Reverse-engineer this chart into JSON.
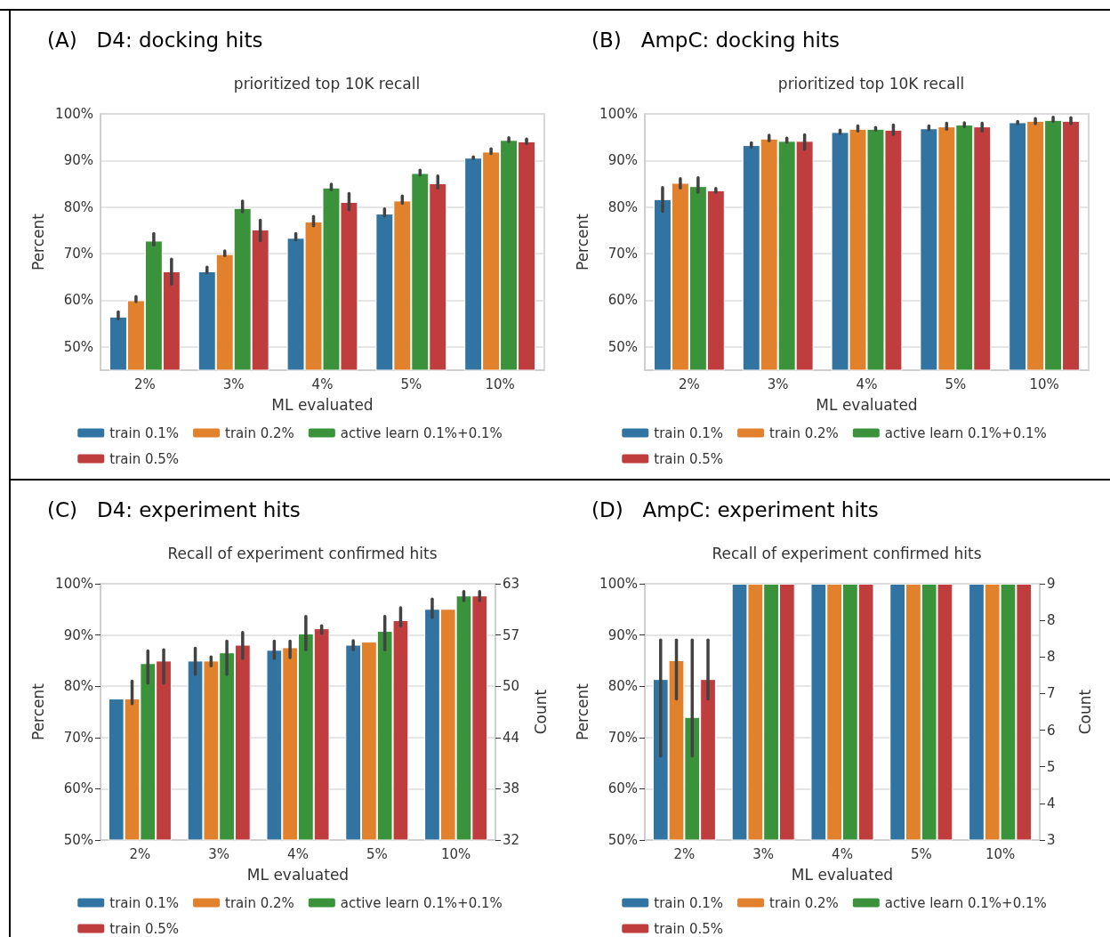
{
  "chart_data": [
    {
      "type": "bar",
      "title": "(A)   D4: docking hits",
      "subtitle": "prioritized top 10K recall",
      "xlabel": "ML evaluated",
      "ylabel": "Percent",
      "categories": [
        "2%",
        "3%",
        "4%",
        "5%",
        "10%"
      ],
      "series": [
        {
          "name": "train 0.1%",
          "color": "#3274a1",
          "values": [
            56.5,
            66.2,
            73.4,
            78.6,
            90.6
          ],
          "errors": [
            [
              56,
              57.5
            ],
            [
              65.9,
              67.1
            ],
            [
              73,
              74.3
            ],
            [
              78.1,
              79.6
            ],
            [
              90.4,
              90.8
            ]
          ]
        },
        {
          "name": "train 0.2%",
          "color": "#e1812c",
          "values": [
            60,
            69.9,
            76.9,
            81.4,
            91.9
          ],
          "errors": [
            [
              59.7,
              60.8
            ],
            [
              69.6,
              70.6
            ],
            [
              76,
              78
            ],
            [
              80.8,
              82.4
            ],
            [
              91.5,
              92.5
            ]
          ]
        },
        {
          "name": "active learn 0.1%+0.1%",
          "color": "#3a923a",
          "values": [
            72.8,
            79.8,
            84.2,
            87.3,
            94.4
          ],
          "errors": [
            [
              71.9,
              74.3
            ],
            [
              79,
              81.3
            ],
            [
              83.7,
              84.9
            ],
            [
              86.9,
              87.9
            ],
            [
              94.1,
              94.9
            ]
          ]
        },
        {
          "name": "train 0.5%",
          "color": "#c03d3e",
          "values": [
            66.2,
            75.2,
            81.1,
            85.1,
            94.1
          ],
          "errors": [
            [
              63.5,
              68.8
            ],
            [
              72.8,
              77.2
            ],
            [
              79.4,
              82.9
            ],
            [
              84.1,
              86.7
            ],
            [
              93.6,
              94.6
            ]
          ]
        }
      ],
      "ylim": [
        45,
        100
      ],
      "yticks": [
        {
          "value": 50,
          "label": "50%"
        },
        {
          "value": 60,
          "label": "60%"
        },
        {
          "value": 70,
          "label": "70%"
        },
        {
          "value": 80,
          "label": "80%"
        },
        {
          "value": 90,
          "label": "90%"
        },
        {
          "value": 100,
          "label": "100%"
        }
      ],
      "grid": "y",
      "legend": "bottom"
    },
    {
      "type": "bar",
      "title": "(B)   AmpC: docking hits",
      "subtitle": "prioritized top 10K recall",
      "xlabel": "ML evaluated",
      "ylabel": "Percent",
      "categories": [
        "2%",
        "3%",
        "4%",
        "5%",
        "10%"
      ],
      "series": [
        {
          "name": "train 0.1%",
          "color": "#3274a1",
          "values": [
            81.7,
            93.3,
            96.1,
            96.9,
            98.2
          ],
          "errors": [
            [
              79.1,
              84.2
            ],
            [
              92.9,
              93.8
            ],
            [
              95.8,
              96.5
            ],
            [
              96.6,
              97.4
            ],
            [
              97.9,
              98.4
            ]
          ]
        },
        {
          "name": "train 0.2%",
          "color": "#e1812c",
          "values": [
            85.2,
            94.7,
            96.8,
            97.3,
            98.5
          ],
          "errors": [
            [
              84.1,
              86.1
            ],
            [
              94.2,
              95.4
            ],
            [
              96.3,
              97.4
            ],
            [
              96.7,
              98
            ],
            [
              97.9,
              99
            ]
          ]
        },
        {
          "name": "active learn 0.1%+0.1%",
          "color": "#3a923a",
          "values": [
            84.5,
            94.2,
            96.8,
            97.7,
            98.7
          ],
          "errors": [
            [
              83.2,
              86.3
            ],
            [
              93.9,
              94.8
            ],
            [
              96.5,
              97.1
            ],
            [
              97.3,
              98.1
            ],
            [
              98.4,
              99.3
            ]
          ]
        },
        {
          "name": "train 0.5%",
          "color": "#c03d3e",
          "values": [
            83.6,
            94.2,
            96.6,
            97.3,
            98.5
          ],
          "errors": [
            [
              83.2,
              84
            ],
            [
              92.4,
              95.5
            ],
            [
              95.6,
              97.6
            ],
            [
              96.3,
              98
            ],
            [
              97.9,
              99.2
            ]
          ]
        }
      ],
      "ylim": [
        45,
        100
      ],
      "yticks": [
        {
          "value": 50,
          "label": "50%"
        },
        {
          "value": 60,
          "label": "60%"
        },
        {
          "value": 70,
          "label": "70%"
        },
        {
          "value": 80,
          "label": "80%"
        },
        {
          "value": 90,
          "label": "90%"
        },
        {
          "value": 100,
          "label": "100%"
        }
      ],
      "grid": "y",
      "legend": "bottom"
    },
    {
      "type": "bar",
      "title": "(C)   D4: experiment hits",
      "subtitle": "Recall of experiment confirmed hits",
      "xlabel": "ML evaluated",
      "ylabel": "Percent",
      "y2label": "Count",
      "categories": [
        "2%",
        "3%",
        "4%",
        "5%",
        "10%"
      ],
      "series": [
        {
          "name": "train 0.1%",
          "color": "#3274a1",
          "values": [
            77.6,
            85,
            87.1,
            88.1,
            95.1
          ],
          "errors": [
            null,
            [
              82.3,
              87.4
            ],
            [
              85.4,
              88.8
            ],
            [
              87.1,
              88.9
            ],
            [
              93.4,
              97
            ]
          ]
        },
        {
          "name": "train 0.2%",
          "color": "#e1812c",
          "values": [
            77.6,
            85,
            87.6,
            88.7,
            95.1
          ],
          "errors": [
            [
              76.6,
              81
            ],
            [
              84,
              85.7
            ],
            [
              85.6,
              88.8
            ],
            null,
            null
          ]
        },
        {
          "name": "active learn 0.1%+0.1%",
          "color": "#3a923a",
          "values": [
            84.5,
            86.6,
            90.3,
            90.8,
            97.7
          ],
          "errors": [
            [
              80.6,
              86.9
            ],
            [
              82.3,
              88.8
            ],
            [
              87.1,
              93.6
            ],
            [
              87.1,
              93.6
            ],
            [
              96.7,
              98.5
            ]
          ]
        },
        {
          "name": "train 0.5%",
          "color": "#c03d3e",
          "values": [
            85,
            88.1,
            91.3,
            92.9,
            97.7
          ],
          "errors": [
            [
              80.6,
              87.1
            ],
            [
              85.4,
              90.5
            ],
            [
              90.3,
              91.8
            ],
            [
              91.8,
              95.3
            ],
            [
              96.7,
              98.5
            ]
          ]
        }
      ],
      "ylim": [
        50,
        100
      ],
      "yticks": [
        {
          "value": 50,
          "label": "50%"
        },
        {
          "value": 60,
          "label": "60%"
        },
        {
          "value": 70,
          "label": "70%"
        },
        {
          "value": 80,
          "label": "80%"
        },
        {
          "value": 90,
          "label": "90%"
        },
        {
          "value": 100,
          "label": "100%"
        }
      ],
      "y2lim": [
        31.5,
        63
      ],
      "y2ticks": [
        {
          "value": 31.5,
          "label": "32"
        },
        {
          "value": 37.8,
          "label": "38"
        },
        {
          "value": 44.1,
          "label": "44"
        },
        {
          "value": 50.4,
          "label": "50"
        },
        {
          "value": 56.7,
          "label": "57"
        },
        63
      ],
      "grid": "y",
      "legend": "bottom"
    },
    {
      "type": "bar",
      "title": "(D)   AmpC: experiment hits",
      "subtitle": "Recall of experiment confirmed hits",
      "xlabel": "ML evaluated",
      "ylabel": "Percent",
      "y2label": "Count",
      "categories": [
        "2%",
        "3%",
        "4%",
        "5%",
        "10%"
      ],
      "series": [
        {
          "name": "train 0.1%",
          "color": "#3274a1",
          "values": [
            81.4,
            100,
            100,
            100,
            100
          ],
          "errors": [
            [
              66.4,
              89
            ],
            null,
            null,
            null,
            null
          ]
        },
        {
          "name": "train 0.2%",
          "color": "#e1812c",
          "values": [
            85.1,
            100,
            100,
            100,
            100
          ],
          "errors": [
            [
              77.5,
              89
            ],
            null,
            null,
            null,
            null
          ]
        },
        {
          "name": "active learn 0.1%+0.1%",
          "color": "#3a923a",
          "values": [
            74,
            100,
            100,
            100,
            100
          ],
          "errors": [
            [
              66.4,
              89
            ],
            null,
            null,
            null,
            null
          ]
        },
        {
          "name": "train 0.5%",
          "color": "#c03d3e",
          "values": [
            81.4,
            100,
            100,
            100,
            100
          ],
          "errors": [
            [
              77.5,
              89
            ],
            null,
            null,
            null,
            null
          ]
        }
      ],
      "ylim": [
        50,
        100
      ],
      "yticks": [
        {
          "value": 50,
          "label": "50%"
        },
        {
          "value": 60,
          "label": "60%"
        },
        {
          "value": 70,
          "label": "70%"
        },
        {
          "value": 80,
          "label": "80%"
        },
        {
          "value": 90,
          "label": "90%"
        },
        {
          "value": 100,
          "label": "100%"
        }
      ],
      "y2lim": [
        3.05,
        9.35
      ],
      "y2ticks": [
        {
          "value": 3.05,
          "label": "3"
        },
        {
          "value": 3.95,
          "label": "4"
        },
        {
          "value": 4.85,
          "label": "5"
        },
        {
          "value": 5.75,
          "label": "6"
        },
        {
          "value": 6.65,
          "label": "7"
        },
        {
          "value": 7.55,
          "label": "8"
        },
        {
          "value": 8.45,
          "label": "8"
        },
        {
          "value": 9.35,
          "label": "9"
        }
      ],
      "grid": "y",
      "legend": "bottom"
    }
  ]
}
